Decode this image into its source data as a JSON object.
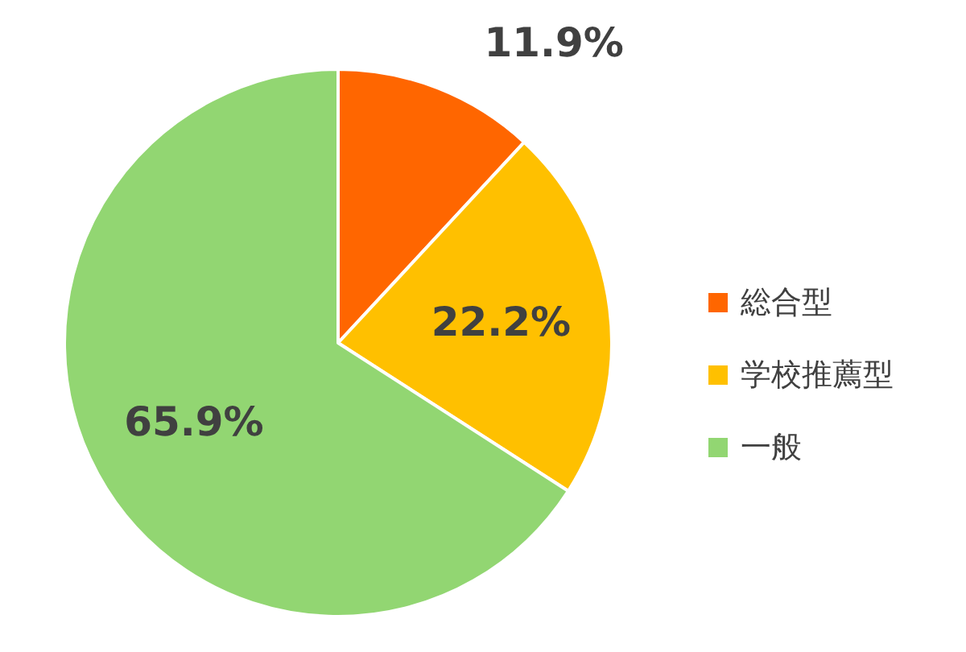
{
  "chart_data": {
    "type": "pie",
    "categories": [
      "総合型",
      "学校推薦型",
      "一般"
    ],
    "values": [
      11.9,
      22.2,
      65.9
    ],
    "colors": [
      "#ff6600",
      "#ffc000",
      "#92d672"
    ],
    "value_labels": [
      "11.9%",
      "22.2%",
      "65.9%"
    ],
    "legend": "right"
  }
}
